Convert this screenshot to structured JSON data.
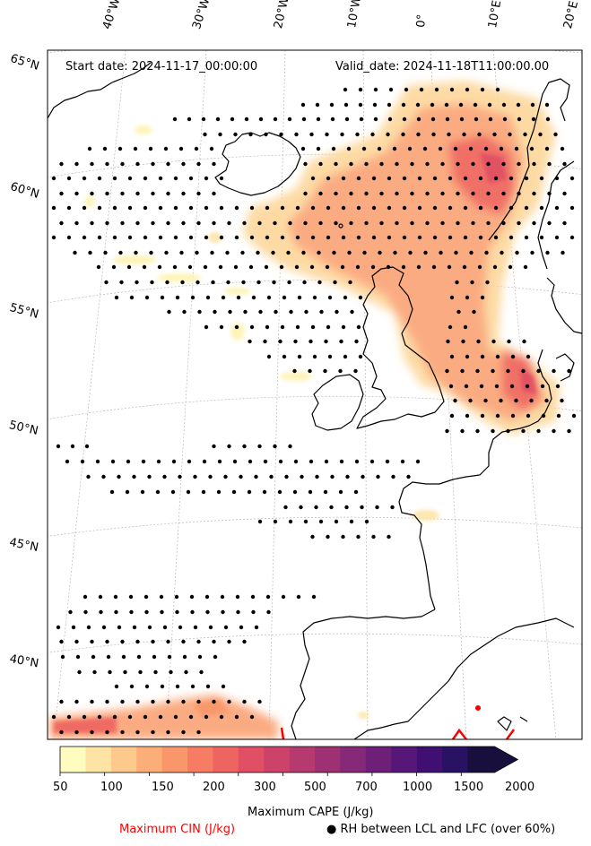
{
  "header": {
    "start_date": "Start date: 2024-11-17_00:00:00",
    "valid_date": "Valid_date: 2024-11-18T11:00:00.00"
  },
  "axes": {
    "longitudes": [
      "40°W",
      "30°W",
      "20°W",
      "10°W",
      "0°",
      "10°E",
      "20°E"
    ],
    "latitudes": [
      "65°N",
      "60°N",
      "55°N",
      "50°N",
      "45°N",
      "40°N"
    ]
  },
  "colorbar": {
    "ticks": [
      "50",
      "100",
      "150",
      "200",
      "300",
      "500",
      "700",
      "1000",
      "1500",
      "2000"
    ],
    "colors": [
      "#fefcbe",
      "#fde4a5",
      "#fdc98c",
      "#fcae79",
      "#fa966b",
      "#f67c63",
      "#ee6461",
      "#e04f64",
      "#cd4269",
      "#b63a6f",
      "#9e3174",
      "#862978",
      "#6e2079",
      "#571778",
      "#3f0f72",
      "#291164",
      "#180f3e"
    ],
    "label": "Maximum CAPE (J/kg)"
  },
  "legend": {
    "cin_label": "Maximum CIN (J/kg)",
    "cin_color": "#ff0000",
    "rh_symbol": "●",
    "rh_label": "RH between LCL and LFC (over 60%)"
  },
  "map": {
    "coastline_color": "#000000",
    "gridline_color": "#b0b0b0",
    "dot_color": "#000000"
  }
}
